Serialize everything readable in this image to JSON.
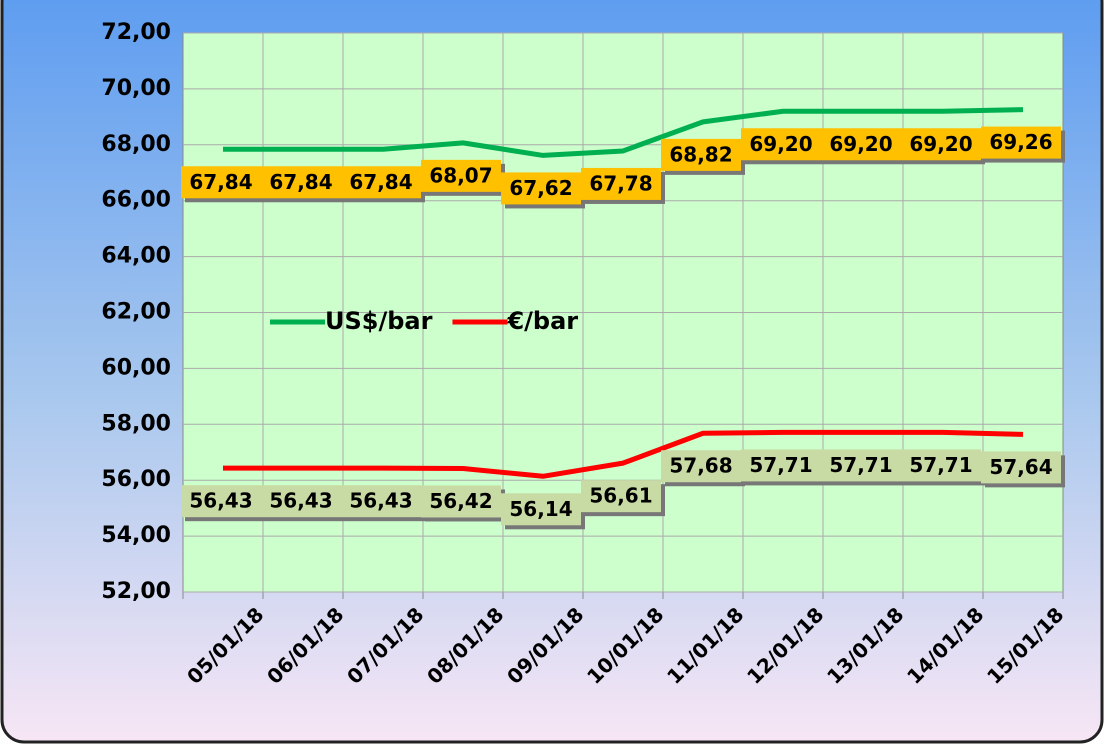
{
  "chart_data": {
    "type": "line",
    "categories": [
      "05/01/18",
      "06/01/18",
      "07/01/18",
      "08/01/18",
      "09/01/18",
      "10/01/18",
      "11/01/18",
      "12/01/18",
      "13/01/18",
      "14/01/18",
      "15/01/18"
    ],
    "series": [
      {
        "name": "US$/bar",
        "color": "#00b050",
        "label_color": "#ffc000",
        "values": [
          67.84,
          67.84,
          67.84,
          68.07,
          67.62,
          67.78,
          68.82,
          69.2,
          69.2,
          69.2,
          69.26
        ],
        "value_labels": [
          "67,84",
          "67,84",
          "67,84",
          "68,07",
          "67,62",
          "67,78",
          "68,82",
          "69,20",
          "69,20",
          "69,20",
          "69,26"
        ]
      },
      {
        "name": "€/bar",
        "color": "#ff0000",
        "label_color": "#c9dba4",
        "values": [
          56.43,
          56.43,
          56.43,
          56.42,
          56.14,
          56.61,
          57.68,
          57.71,
          57.71,
          57.71,
          57.64
        ],
        "value_labels": [
          "56,43",
          "56,43",
          "56,43",
          "56,42",
          "56,14",
          "56,61",
          "57,68",
          "57,71",
          "57,71",
          "57,71",
          "57,64"
        ]
      }
    ],
    "ylim": [
      52,
      72
    ],
    "yticks": [
      {
        "value": 52,
        "label": "52,00"
      },
      {
        "value": 54,
        "label": "54,00"
      },
      {
        "value": 56,
        "label": "56,00"
      },
      {
        "value": 58,
        "label": "58,00"
      },
      {
        "value": 60,
        "label": "60,00"
      },
      {
        "value": 62,
        "label": "62,00"
      },
      {
        "value": 64,
        "label": "64,00"
      },
      {
        "value": 66,
        "label": "66,00"
      },
      {
        "value": 68,
        "label": "68,00"
      },
      {
        "value": 70,
        "label": "70,00"
      },
      {
        "value": 72,
        "label": "72,00"
      }
    ],
    "grid": true
  }
}
